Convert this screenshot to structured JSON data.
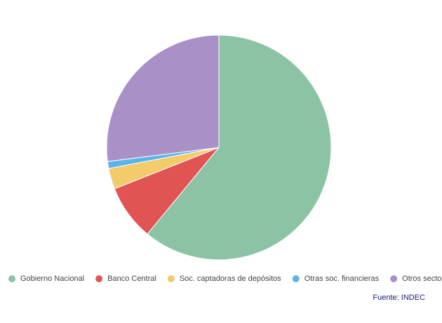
{
  "chart_data": {
    "type": "pie",
    "categories": [
      "Gobierno Nacional",
      "Banco Central",
      "Soc. captadoras de depósitos",
      "Otras soc. financieras",
      "Otros sectores"
    ],
    "values": [
      61,
      8,
      3,
      1,
      27
    ],
    "colors": [
      "#8cc3a5",
      "#e05454",
      "#f2cc6b",
      "#5ab4e8",
      "#a991c7"
    ],
    "source": "Fuente: INDEC"
  }
}
